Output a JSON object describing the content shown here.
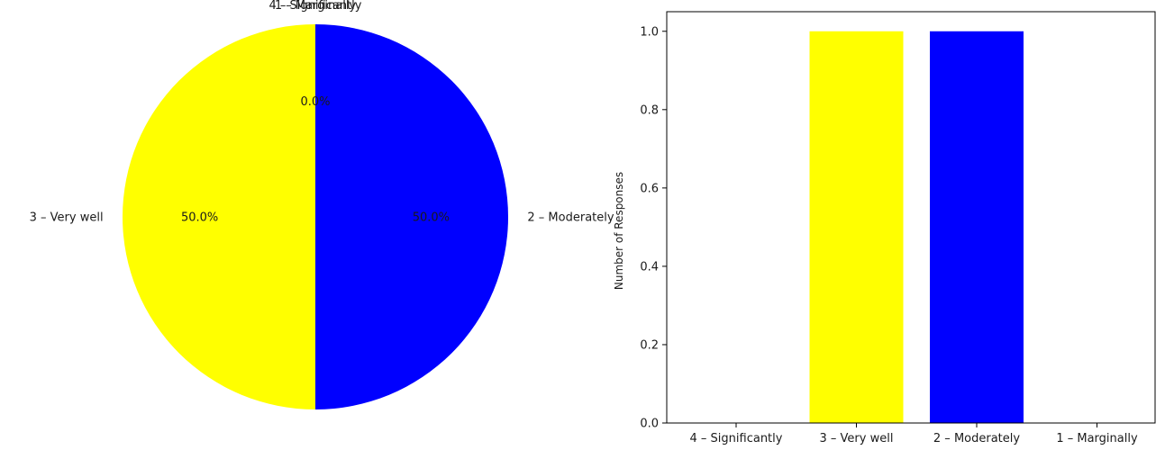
{
  "colors": {
    "4 – Significantly": "#ff7f0e",
    "3 – Very well": "#ffff00",
    "2 – Moderately": "#0000ff",
    "1 – Marginally": "#2ca02c",
    "axis": "#000000",
    "text": "#1a1a1a"
  },
  "chart_data": [
    {
      "type": "pie",
      "categories": [
        "4 – Significantly",
        "3 – Very well",
        "2 – Moderately",
        "1 – Marginally"
      ],
      "values": [
        0,
        1,
        1,
        0
      ],
      "pct_labels": [
        "0.0%",
        "50.0%",
        "50.0%",
        "0.0%"
      ],
      "start_angle_deg": 90,
      "direction": "counterclockwise",
      "title": ""
    },
    {
      "type": "bar",
      "categories": [
        "4 – Significantly",
        "3 – Very well",
        "2 – Moderately",
        "1 – Marginally"
      ],
      "values": [
        0,
        1,
        1,
        0
      ],
      "xlabel": "",
      "ylabel": "Number of Responses",
      "ylim": [
        0,
        1.05
      ],
      "yticks": [
        0,
        0.2,
        0.4,
        0.6,
        0.8,
        1.0
      ],
      "ytick_labels": [
        "0.0",
        "0.2",
        "0.4",
        "0.6",
        "0.8",
        "1.0"
      ],
      "grid": false,
      "title": ""
    }
  ]
}
